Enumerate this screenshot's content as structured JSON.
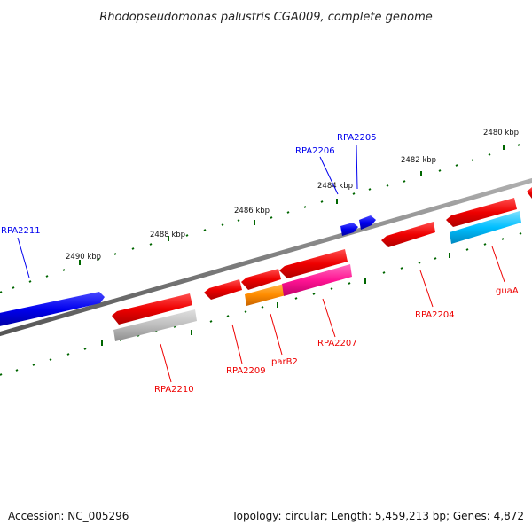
{
  "title": "Rhodopseudomonas palustris CGA009, complete genome",
  "footer": {
    "accession": "Accession: NC_005296",
    "topology": "Topology: circular; Length: 5,459,213 bp; Genes: 4,872"
  },
  "scale": {
    "unit": "kbp",
    "ticks": [
      "2480 kbp",
      "2482 kbp",
      "2484 kbp",
      "2486 kbp",
      "2488 kbp",
      "2490 kbp"
    ]
  },
  "genes": [
    {
      "id": "RPA2211",
      "label": "RPA2211",
      "strand": "forward",
      "color": "#0000ee"
    },
    {
      "id": "RPA2206",
      "label": "RPA2206",
      "strand": "forward",
      "color": "#0000ee"
    },
    {
      "id": "RPA2205",
      "label": "RPA2205",
      "strand": "forward",
      "color": "#0000ee"
    },
    {
      "id": "RPA2210",
      "label": "RPA2210",
      "strand": "reverse",
      "color": "#ee0000"
    },
    {
      "id": "RPA2209",
      "label": "RPA2209",
      "strand": "reverse",
      "color": "#ee0000"
    },
    {
      "id": "parB2",
      "label": "parB2",
      "strand": "reverse",
      "color": "#ee0000"
    },
    {
      "id": "RPA2207",
      "label": "RPA2207",
      "strand": "reverse",
      "color": "#ee0000"
    },
    {
      "id": "RPA2204",
      "label": "RPA2204",
      "strand": "reverse",
      "color": "#ee0000"
    },
    {
      "id": "guaA",
      "label": "guaA",
      "strand": "reverse",
      "color": "#ee0000"
    }
  ],
  "feature_colors": {
    "forward_cds": "#0000ee",
    "reverse_cds": "#ee0000",
    "gray_feature": "#b4b4b4",
    "orange_feature": "#ff8c00",
    "magenta_feature": "#ff1493",
    "cyan_feature": "#00bfff",
    "backbone": "#808080",
    "tick_marks": "#006600"
  }
}
